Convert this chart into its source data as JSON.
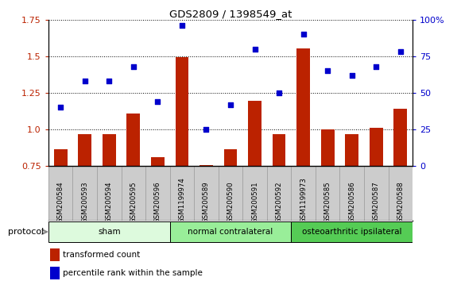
{
  "title": "GDS2809 / 1398549_at",
  "samples": [
    "GSM200584",
    "GSM200593",
    "GSM200594",
    "GSM200595",
    "GSM200596",
    "GSM1199974",
    "GSM200589",
    "GSM200590",
    "GSM200591",
    "GSM200592",
    "GSM1199973",
    "GSM200585",
    "GSM200586",
    "GSM200587",
    "GSM200588"
  ],
  "bar_values": [
    0.865,
    0.965,
    0.965,
    1.11,
    0.81,
    1.495,
    0.755,
    0.865,
    1.195,
    0.965,
    1.555,
    1.0,
    0.965,
    1.01,
    1.14
  ],
  "scatter_values": [
    40,
    58,
    58,
    68,
    44,
    96,
    25,
    42,
    80,
    50,
    90,
    65,
    62,
    68,
    78
  ],
  "bar_color": "#bb2200",
  "scatter_color": "#0000cc",
  "ylim_left": [
    0.75,
    1.75
  ],
  "ylim_right": [
    0,
    100
  ],
  "yticks_left": [
    0.75,
    1.0,
    1.25,
    1.5,
    1.75
  ],
  "yticks_right": [
    0,
    25,
    50,
    75,
    100
  ],
  "ytick_labels_right": [
    "0",
    "25",
    "50",
    "75",
    "100%"
  ],
  "groups": [
    {
      "label": "sham",
      "start": 0,
      "end": 5,
      "color": "#ddfadd"
    },
    {
      "label": "normal contralateral",
      "start": 5,
      "end": 10,
      "color": "#99ee99"
    },
    {
      "label": "osteoarthritic ipsilateral",
      "start": 10,
      "end": 15,
      "color": "#55cc55"
    }
  ],
  "protocol_label": "protocol",
  "legend_bar_label": "transformed count",
  "legend_scatter_label": "percentile rank within the sample",
  "background_color": "#ffffff",
  "tick_area_color": "#cccccc"
}
